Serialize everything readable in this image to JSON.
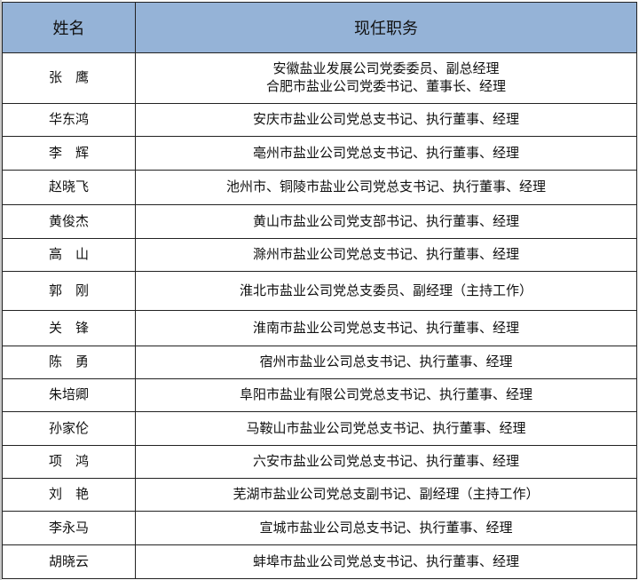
{
  "header": {
    "name": "姓名",
    "position": "现任职务"
  },
  "colors": {
    "header_bg": "#95b3d7",
    "border": "#222222"
  },
  "rows": [
    {
      "name": "张　鹰",
      "positions": [
        "安徽盐业发展公司党委委员、副总经理",
        "合肥市盐业公司党委书记、董事长、经理"
      ]
    },
    {
      "name": "华东鸿",
      "positions": [
        "安庆市盐业公司党总支书记、执行董事、经理"
      ]
    },
    {
      "name": "李　辉",
      "positions": [
        "亳州市盐业公司党总支书记、执行董事、经理"
      ]
    },
    {
      "name": "赵晓飞",
      "positions": [
        "池州市、铜陵市盐业公司党总支书记、执行董事、经理"
      ]
    },
    {
      "name": "黄俊杰",
      "positions": [
        "黄山市盐业公司党支部书记、执行董事、经理"
      ]
    },
    {
      "name": "高　山",
      "positions": [
        "滁州市盐业公司党总支书记、执行董事、经理"
      ]
    },
    {
      "name": "郭　刚",
      "positions": [
        "淮北市盐业公司党总支委员、副经理（主持工作）"
      ]
    },
    {
      "name": "关　锋",
      "positions": [
        "淮南市盐业公司党总支书记、执行董事、经理"
      ]
    },
    {
      "name": "陈　勇",
      "positions": [
        "宿州市盐业公司总支书记、执行董事、经理"
      ]
    },
    {
      "name": "朱培卿",
      "positions": [
        "阜阳市盐业有限公司党总支书记、执行董事、经理"
      ]
    },
    {
      "name": "孙家伦",
      "positions": [
        "马鞍山市盐业公司党总支书记、执行董事、经理"
      ]
    },
    {
      "name": "项　鸿",
      "positions": [
        "六安市盐业公司党总支书记、执行董事、经理"
      ]
    },
    {
      "name": "刘　艳",
      "positions": [
        "芜湖市盐业公司党总支副书记、副经理（主持工作）"
      ]
    },
    {
      "name": "李永马",
      "positions": [
        "宣城市盐业公司总支书记、执行董事、经理"
      ]
    },
    {
      "name": "胡晓云",
      "positions": [
        "蚌埠市盐业公司党总支书记、执行董事、经理"
      ]
    }
  ]
}
